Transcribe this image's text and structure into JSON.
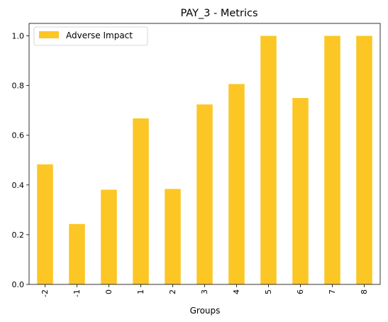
{
  "chart_data": {
    "type": "bar",
    "title": "PAY_3 - Metrics",
    "xlabel": "Groups",
    "ylabel": "",
    "categories": [
      "-2",
      "-1",
      "0",
      "1",
      "2",
      "3",
      "4",
      "5",
      "6",
      "7",
      "8"
    ],
    "series": [
      {
        "name": "Adverse Impact",
        "color": "#FCC624",
        "values": [
          0.483,
          0.243,
          0.381,
          0.668,
          0.384,
          0.724,
          0.806,
          1.0,
          0.75,
          1.0,
          1.0
        ]
      }
    ],
    "ylim": [
      0,
      1.05
    ],
    "yticks": [
      "0.0",
      "0.2",
      "0.4",
      "0.6",
      "0.8",
      "1.0"
    ],
    "legend_position": "top-left",
    "grid": false
  }
}
